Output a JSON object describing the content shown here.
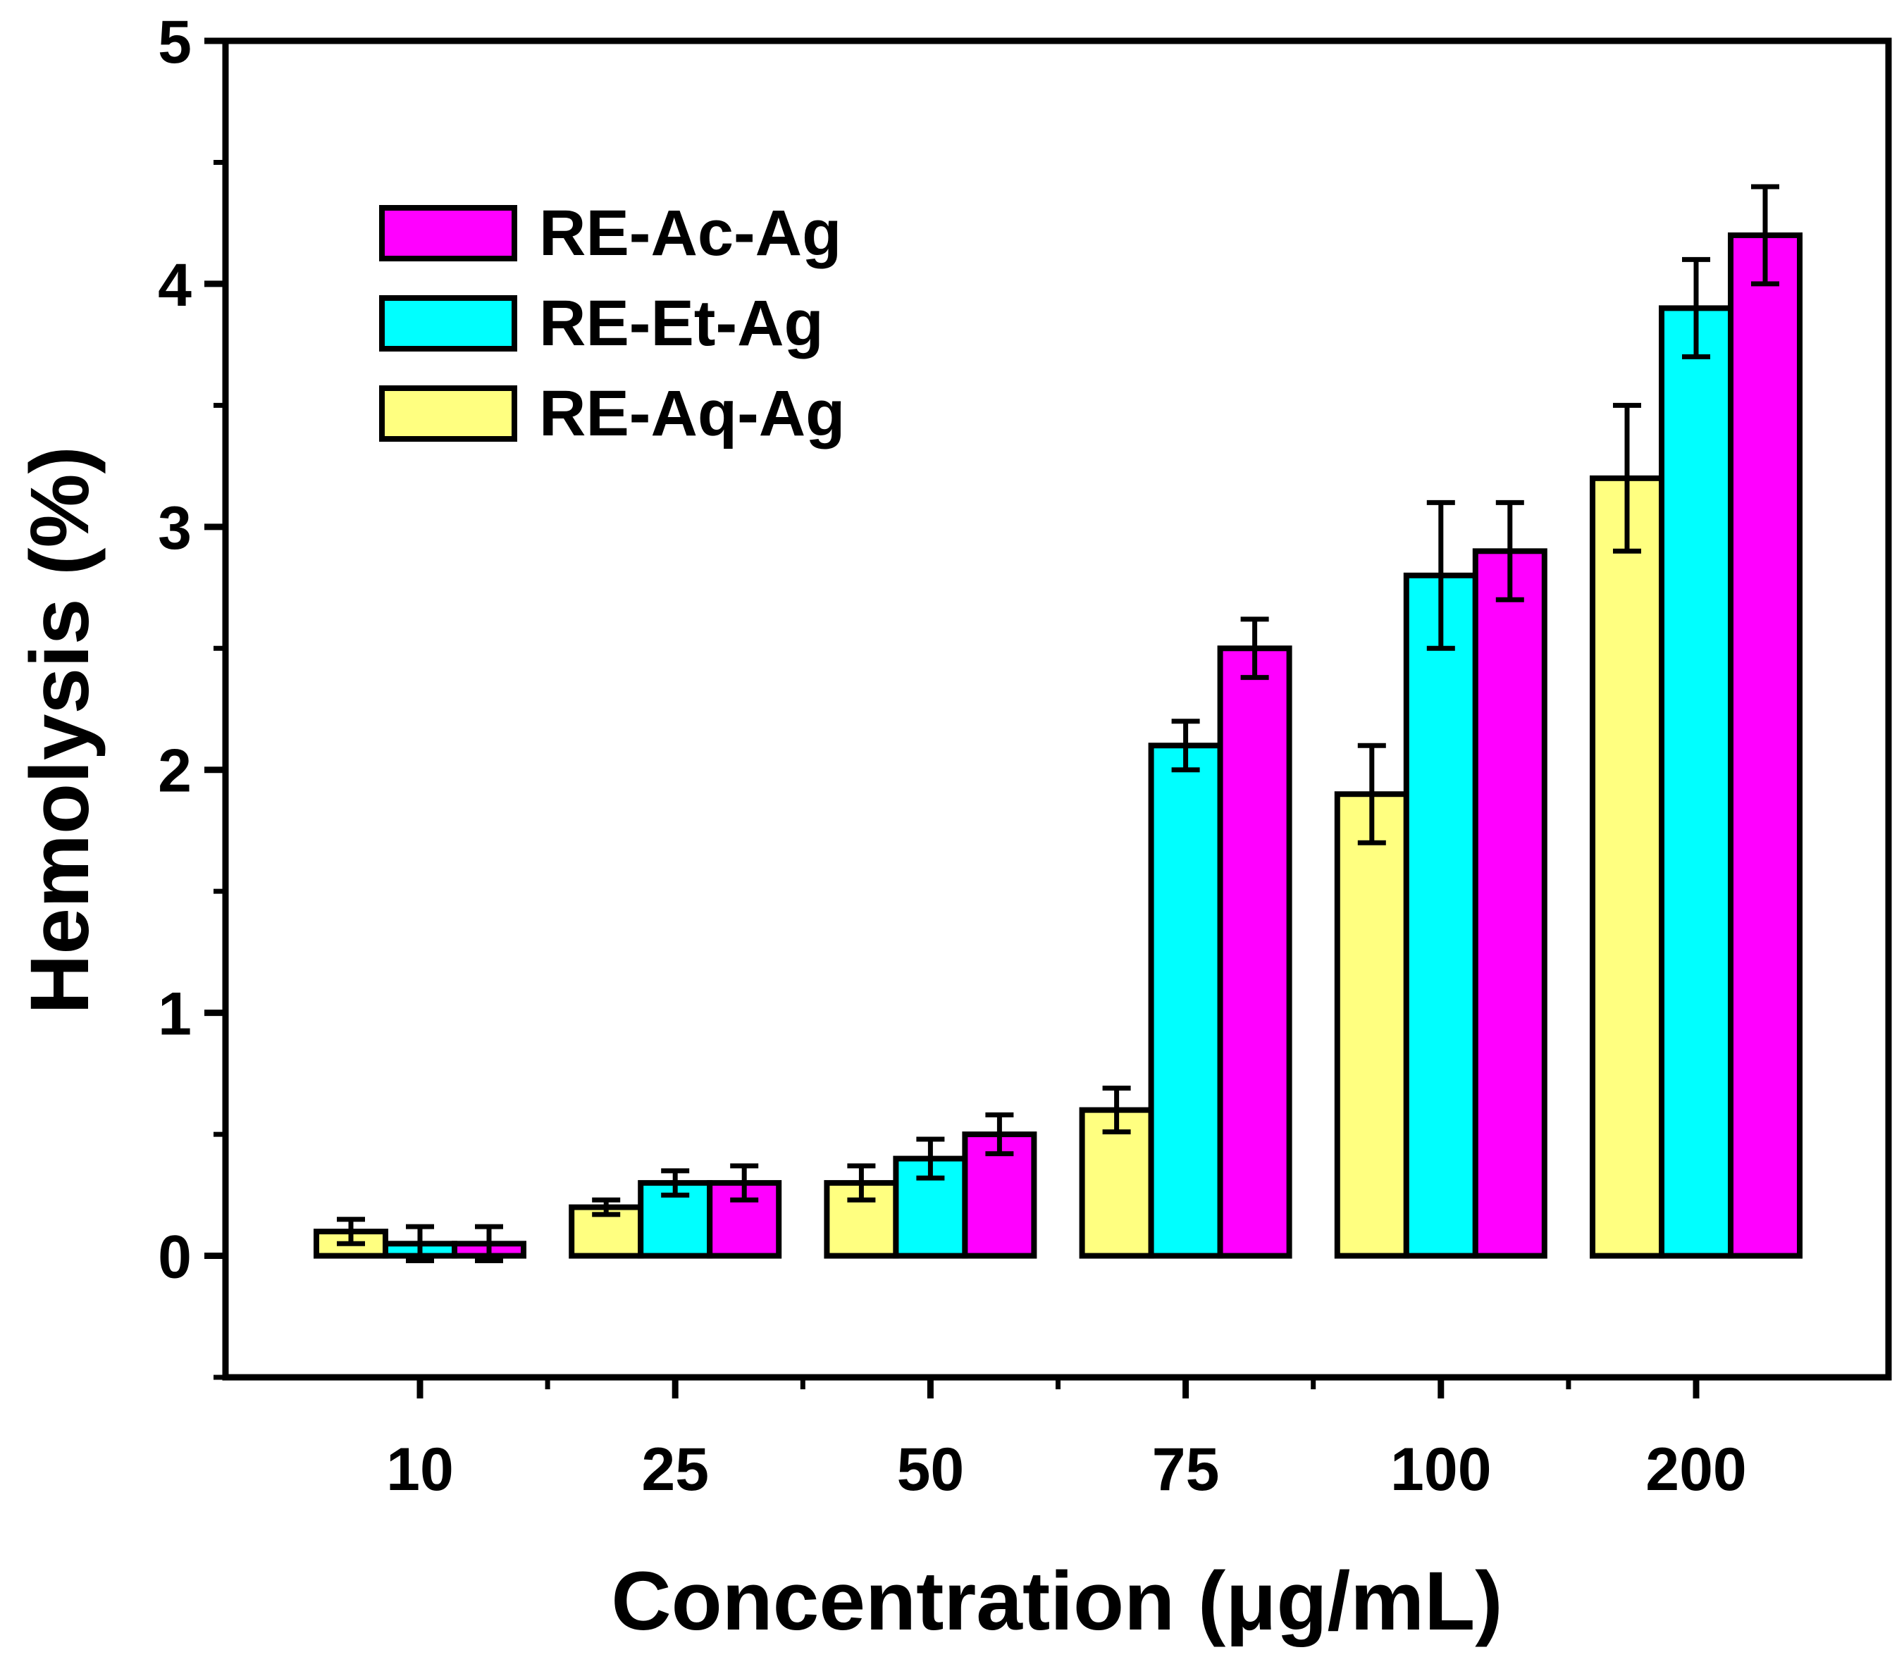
{
  "chart_data": {
    "type": "bar",
    "title": "",
    "xlabel": "Concentration (μg/mL)",
    "ylabel": "Hemolysis (%)",
    "ylim": [
      -0.5,
      5
    ],
    "yticks": [
      "0",
      "1",
      "2",
      "3",
      "4",
      "5"
    ],
    "categories": [
      "10",
      "25",
      "50",
      "75",
      "100",
      "200"
    ],
    "legend_position": "top-left",
    "grid": false,
    "series": [
      {
        "name": "RE-Aq-Ag",
        "color": "#ffff80",
        "values": [
          0.1,
          0.2,
          0.3,
          0.6,
          1.9,
          3.2
        ],
        "errors": [
          0.05,
          0.03,
          0.07,
          0.09,
          0.2,
          0.3
        ]
      },
      {
        "name": "RE-Et-Ag",
        "color": "#00ffff",
        "values": [
          0.05,
          0.3,
          0.4,
          2.1,
          2.8,
          3.9
        ],
        "errors": [
          0.07,
          0.05,
          0.08,
          0.1,
          0.3,
          0.2
        ]
      },
      {
        "name": "RE-Ac-Ag",
        "color": "#ff00ff",
        "values": [
          0.05,
          0.3,
          0.5,
          2.5,
          2.9,
          4.2
        ],
        "errors": [
          0.07,
          0.07,
          0.08,
          0.12,
          0.2,
          0.2
        ]
      }
    ],
    "legend_order": [
      "RE-Ac-Ag",
      "RE-Et-Ag",
      "RE-Aq-Ag"
    ]
  }
}
